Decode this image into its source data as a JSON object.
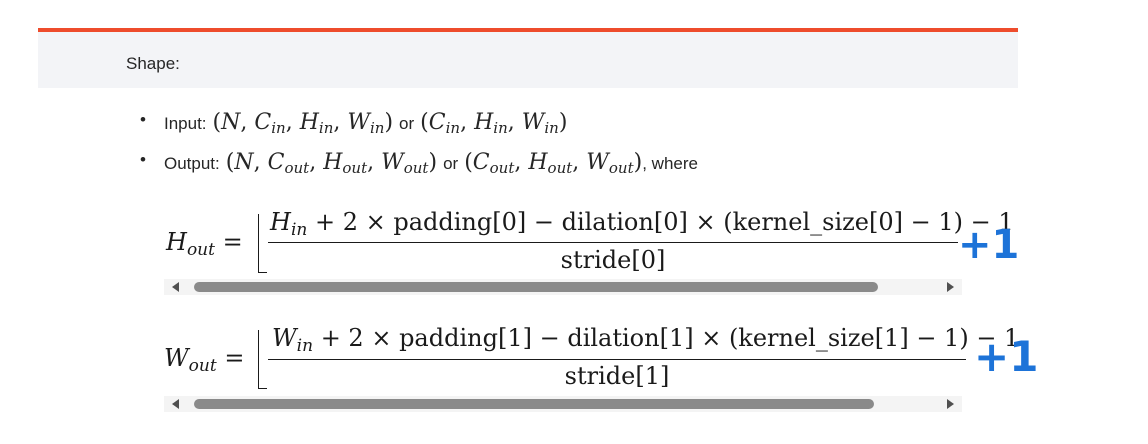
{
  "shape": {
    "title": "Shape:",
    "accent_color": "#ee4c2c"
  },
  "bullets": [
    {
      "label": "Input:",
      "expr_a": [
        "N",
        "C",
        "in",
        "H",
        "in",
        "W",
        "in"
      ],
      "connector": "or",
      "expr_b": [
        "C",
        "in",
        "H",
        "in",
        "W",
        "in"
      ],
      "trailer": ""
    },
    {
      "label": "Output:",
      "expr_a": [
        "N",
        "C",
        "out",
        "H",
        "out",
        "W",
        "out"
      ],
      "connector": "or",
      "expr_b": [
        "C",
        "out",
        "H",
        "out",
        "W",
        "out"
      ],
      "trailer": ", where"
    }
  ],
  "formulas": [
    {
      "lhs_var": "H",
      "lhs_sub": "out",
      "num_var": "H",
      "num_sub": "in",
      "num_rest": " + 2 × padding[0] − dilation[0] × (kernel_size[0] − 1) − 1",
      "den": "stride[0]",
      "annotation": "+1"
    },
    {
      "lhs_var": "W",
      "lhs_sub": "out",
      "num_var": "W",
      "num_sub": "in",
      "num_rest": " + 2 × padding[1] − dilation[1] × (kernel_size[1] − 1) − 1",
      "den": "stride[1]",
      "annotation": "+1"
    }
  ],
  "annotation_color": "#1d73d8"
}
